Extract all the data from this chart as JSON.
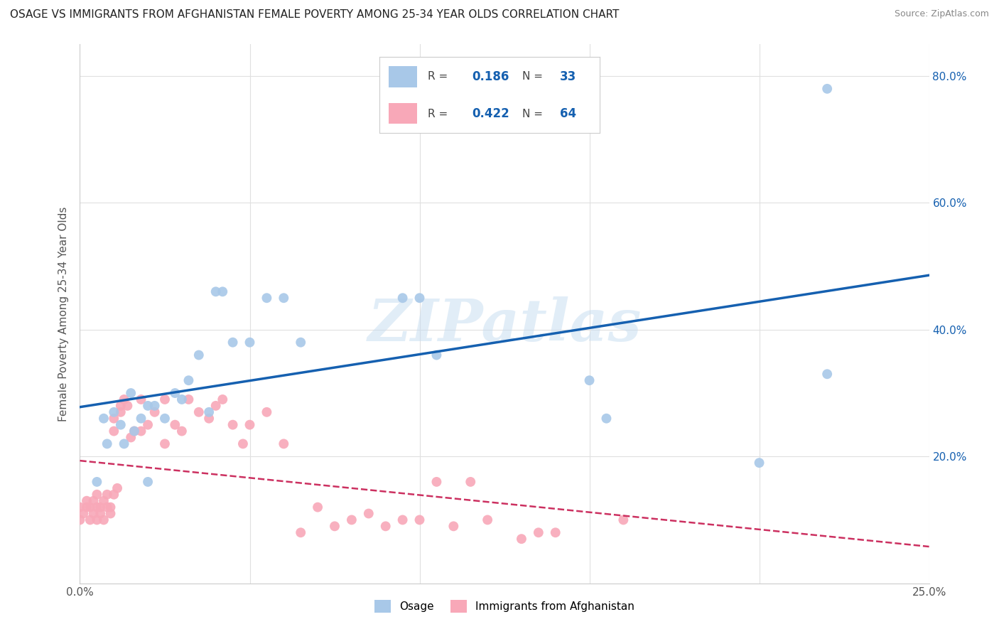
{
  "title": "OSAGE VS IMMIGRANTS FROM AFGHANISTAN FEMALE POVERTY AMONG 25-34 YEAR OLDS CORRELATION CHART",
  "source": "Source: ZipAtlas.com",
  "ylabel": "Female Poverty Among 25-34 Year Olds",
  "xlim": [
    0.0,
    0.25
  ],
  "ylim": [
    0.0,
    0.85
  ],
  "xticks": [
    0.0,
    0.05,
    0.1,
    0.15,
    0.2,
    0.25
  ],
  "xticklabels": [
    "0.0%",
    "",
    "",
    "",
    "",
    "25.0%"
  ],
  "yticks": [
    0.0,
    0.2,
    0.4,
    0.6,
    0.8
  ],
  "yticklabels_right": [
    "",
    "20.0%",
    "40.0%",
    "60.0%",
    "80.0%"
  ],
  "background_color": "#ffffff",
  "grid_color": "#e0e0e0",
  "watermark": "ZIPatlas",
  "legend_R1": "0.186",
  "legend_N1": "33",
  "legend_R2": "0.422",
  "legend_N2": "64",
  "osage_color": "#a8c8e8",
  "afghanistan_color": "#f8a8b8",
  "line1_color": "#1560b0",
  "line2_color": "#cc3060",
  "osage_x": [
    0.005,
    0.007,
    0.008,
    0.01,
    0.012,
    0.013,
    0.015,
    0.016,
    0.018,
    0.02,
    0.022,
    0.025,
    0.028,
    0.03,
    0.032,
    0.035,
    0.038,
    0.04,
    0.042,
    0.045,
    0.05,
    0.055,
    0.06,
    0.065,
    0.095,
    0.1,
    0.105,
    0.15,
    0.155,
    0.2,
    0.22,
    0.22,
    0.02
  ],
  "osage_y": [
    0.16,
    0.26,
    0.22,
    0.27,
    0.25,
    0.22,
    0.3,
    0.24,
    0.26,
    0.28,
    0.28,
    0.26,
    0.3,
    0.29,
    0.32,
    0.36,
    0.27,
    0.46,
    0.46,
    0.38,
    0.38,
    0.45,
    0.45,
    0.38,
    0.45,
    0.45,
    0.36,
    0.32,
    0.26,
    0.19,
    0.33,
    0.78,
    0.16
  ],
  "afghanistan_x": [
    0.0,
    0.0,
    0.001,
    0.002,
    0.002,
    0.003,
    0.003,
    0.004,
    0.004,
    0.005,
    0.005,
    0.005,
    0.006,
    0.006,
    0.007,
    0.007,
    0.008,
    0.008,
    0.009,
    0.009,
    0.01,
    0.01,
    0.01,
    0.011,
    0.012,
    0.012,
    0.013,
    0.014,
    0.015,
    0.016,
    0.018,
    0.018,
    0.02,
    0.022,
    0.025,
    0.025,
    0.028,
    0.03,
    0.032,
    0.035,
    0.038,
    0.04,
    0.042,
    0.045,
    0.048,
    0.05,
    0.055,
    0.06,
    0.065,
    0.07,
    0.075,
    0.08,
    0.085,
    0.09,
    0.095,
    0.1,
    0.105,
    0.11,
    0.115,
    0.12,
    0.13,
    0.135,
    0.14,
    0.16
  ],
  "afghanistan_y": [
    0.1,
    0.12,
    0.11,
    0.12,
    0.13,
    0.1,
    0.12,
    0.11,
    0.13,
    0.1,
    0.12,
    0.14,
    0.11,
    0.12,
    0.1,
    0.13,
    0.12,
    0.14,
    0.12,
    0.11,
    0.14,
    0.24,
    0.26,
    0.15,
    0.27,
    0.28,
    0.29,
    0.28,
    0.23,
    0.24,
    0.29,
    0.24,
    0.25,
    0.27,
    0.29,
    0.22,
    0.25,
    0.24,
    0.29,
    0.27,
    0.26,
    0.28,
    0.29,
    0.25,
    0.22,
    0.25,
    0.27,
    0.22,
    0.08,
    0.12,
    0.09,
    0.1,
    0.11,
    0.09,
    0.1,
    0.1,
    0.16,
    0.09,
    0.16,
    0.1,
    0.07,
    0.08,
    0.08,
    0.1
  ]
}
